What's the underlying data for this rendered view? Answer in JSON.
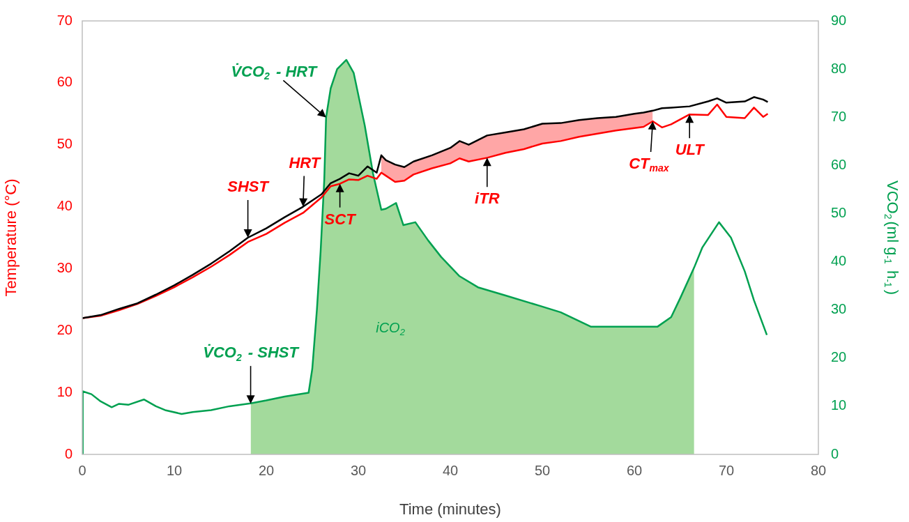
{
  "chart_data": {
    "type": "line",
    "xlabel": "Time (minutes)",
    "ylabel": "Temperature (°C)",
    "y2label": "VCO$_{2}$(ml g$_{-1}$ h$_{-1}$)",
    "xlim": [
      0,
      80
    ],
    "xticks": [
      0,
      10,
      20,
      30,
      40,
      50,
      60,
      70,
      80
    ],
    "ylim": [
      0,
      70
    ],
    "yticks": [
      0,
      10,
      20,
      30,
      40,
      50,
      60,
      70
    ],
    "y2lim": [
      0,
      90
    ],
    "y2ticks": [
      0,
      10,
      20,
      30,
      40,
      50,
      60,
      70,
      80,
      90
    ],
    "grid": false,
    "legend": false,
    "marker": "none",
    "line_style": "solid",
    "series": [
      {
        "type": "area",
        "axis": "y2",
        "color": "#a3da9c",
        "x": [
          18.3,
          20,
          22,
          24.6,
          25,
          25.5,
          25.9,
          26.3,
          26.5,
          27,
          27.7,
          28.7,
          29.5,
          30.7,
          31.6,
          32.5,
          33,
          34.1,
          34.9,
          36.2,
          37.6,
          39,
          41,
          43,
          46,
          49.8,
          52,
          55.3,
          58,
          62.5,
          64,
          65,
          66.5
        ],
        "values": [
          10.6,
          11.2,
          12,
          12.8,
          17.8,
          30,
          42,
          57,
          70,
          76,
          80,
          81.9,
          79.2,
          68.3,
          58.3,
          50.8,
          51,
          52.2,
          47.6,
          48.2,
          44.4,
          41,
          37,
          34.7,
          33,
          30.8,
          29.5,
          26.5,
          26.5,
          26.5,
          28.5,
          32.5,
          38.8
        ]
      },
      {
        "color": "#000000",
        "x": [
          0,
          2,
          4,
          6,
          8,
          10,
          12,
          14,
          16,
          18,
          20,
          22,
          24,
          26,
          27,
          28,
          29,
          30,
          31,
          32,
          32.5,
          33,
          34,
          35,
          36,
          38,
          40,
          41,
          42,
          44,
          46,
          48,
          50,
          52,
          54,
          56,
          58,
          60,
          61,
          62,
          63,
          64,
          66,
          68,
          69,
          70,
          72,
          73,
          74,
          74.5
        ],
        "values": [
          22,
          22.5,
          23.5,
          24.4,
          25.8,
          27.3,
          29,
          30.8,
          32.8,
          35,
          36.5,
          38.3,
          40,
          42,
          43.8,
          44.5,
          45.4,
          45,
          46.5,
          45.5,
          48.3,
          47.5,
          46.8,
          46.4,
          47.3,
          48.3,
          49.5,
          50.6,
          50,
          51.5,
          52,
          52.5,
          53.4,
          53.5,
          54,
          54.3,
          54.5,
          55,
          55.2,
          55.5,
          55.9,
          56,
          56.2,
          57,
          57.5,
          56.8,
          57,
          57.7,
          57.3,
          56.9
        ]
      },
      {
        "color": "#ff0000",
        "x": [
          0,
          2,
          4,
          6,
          8,
          10,
          12,
          14,
          16,
          18,
          20,
          22,
          24,
          26,
          27,
          28,
          29,
          30,
          31,
          32,
          32.5,
          33,
          34,
          35,
          36,
          38,
          40,
          41,
          42,
          44,
          46,
          48,
          50,
          52,
          54,
          56,
          58,
          60,
          61,
          62,
          63,
          64,
          66,
          68,
          69,
          70,
          72,
          73,
          74,
          74.5
        ],
        "values": [
          22,
          22.4,
          23.3,
          24.3,
          25.6,
          27,
          28.6,
          30.3,
          32.2,
          34.3,
          35.6,
          37.4,
          39,
          41.5,
          43.3,
          43.7,
          44.4,
          44.3,
          45,
          44.5,
          45.5,
          45,
          44,
          44.2,
          45.2,
          46.2,
          47,
          47.8,
          47.3,
          47.9,
          48.7,
          49.3,
          50.2,
          50.6,
          51.3,
          51.8,
          52.3,
          52.7,
          52.9,
          53.8,
          52.8,
          53.3,
          54.9,
          54.8,
          56.5,
          54.5,
          54.3,
          56,
          54.5,
          55
        ],
        "lower": [
          null,
          null,
          null,
          null,
          null,
          null,
          null,
          null,
          null,
          null,
          null,
          null,
          null,
          null,
          null,
          null,
          null,
          null,
          null,
          null,
          45.5,
          45,
          44,
          44.2,
          45.2,
          46.2,
          47,
          47.8,
          47.3,
          47.9,
          48.7,
          49.3,
          50.2,
          50.6,
          51.3,
          51.8,
          52.3,
          52.7,
          52.9,
          53.8,
          null,
          null,
          null,
          null,
          null,
          null,
          null,
          null,
          null,
          null
        ],
        "upper": [
          null,
          null,
          null,
          null,
          null,
          null,
          null,
          null,
          null,
          null,
          null,
          null,
          null,
          null,
          null,
          null,
          null,
          null,
          null,
          null,
          48.3,
          47.5,
          46.8,
          46.4,
          47.3,
          48.3,
          49.5,
          50.6,
          50,
          51.5,
          52,
          52.5,
          53.4,
          53.5,
          54,
          54.3,
          54.5,
          55,
          55.2,
          55.5,
          null,
          null,
          null,
          null,
          null,
          null,
          null,
          null,
          null,
          null
        ]
      },
      {
        "axis": "y2",
        "color": "#00a050",
        "x": [
          0,
          0.05,
          1,
          2,
          3.2,
          4,
          5,
          6.7,
          8,
          9,
          10.8,
          12,
          14,
          16,
          18.3,
          20,
          22,
          24.6,
          25,
          25.5,
          25.9,
          26.3,
          26.5,
          27,
          27.7,
          28.7,
          29.5,
          30.7,
          31.6,
          32.5,
          33,
          34.1,
          34.9,
          36.2,
          37.6,
          39,
          41,
          43,
          46,
          49.8,
          52,
          55.3,
          58,
          62.5,
          64,
          65,
          66.5,
          67.4,
          69.2,
          70.5,
          72,
          73,
          74.4
        ],
        "values": [
          0,
          13.1,
          12.5,
          11,
          9.8,
          10.5,
          10.3,
          11.4,
          10,
          9.2,
          8.4,
          8.8,
          9.2,
          10,
          10.6,
          11.2,
          12,
          12.8,
          17.8,
          30,
          42,
          57,
          70,
          76,
          80,
          81.9,
          79.2,
          68.3,
          58.3,
          50.8,
          51,
          52.2,
          47.6,
          48.2,
          44.4,
          41,
          37,
          34.7,
          33,
          30.8,
          29.5,
          26.5,
          26.5,
          26.5,
          28.5,
          32.5,
          38.8,
          43,
          48.2,
          45,
          38,
          32,
          24.8
        ]
      }
    ],
    "annotations": [
      {
        "text": "SHST",
        "x": 18,
        "y": 35
      },
      {
        "text": "HRT",
        "x": 24,
        "y": 40
      },
      {
        "text": "SCT",
        "x": 28,
        "y": 43.7
      },
      {
        "text": "iTR",
        "x": 44,
        "y": 47.9
      },
      {
        "text": "CT$_{max}$",
        "x": 62,
        "y": 53.8
      },
      {
        "text": "ULT",
        "x": 66,
        "y": 54.9
      },
      {
        "text": "V̇CO$_{2}$ - HRT",
        "x": 26.5,
        "y": 54.4
      },
      {
        "text": "V̇CO$_{2}$ - SHST",
        "x": 18.3,
        "y": 8.2
      },
      "iCO$_{2}$"
    ]
  }
}
